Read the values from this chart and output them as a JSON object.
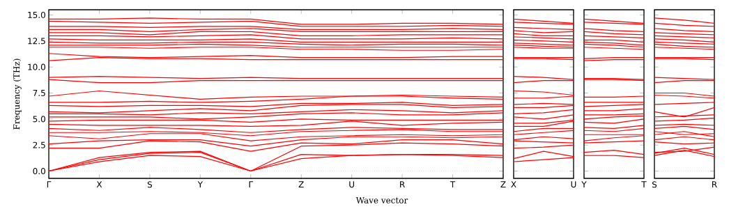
{
  "chart_data": [
    {
      "type": "line",
      "ylabel": "Frequency (THz)",
      "xlabel": "Wave vector",
      "color": "#ff0000",
      "marker": "none",
      "line_style": "solid",
      "categories": [
        "Γ",
        "X",
        "S",
        "Y",
        "Γ",
        "Z",
        "U",
        "R",
        "T",
        "Z"
      ],
      "ylim": [
        -0.7,
        15.5
      ],
      "yticks": [
        {
          "value": 0,
          "label": "0.0"
        },
        {
          "value": 2.5,
          "label": "2.5"
        },
        {
          "value": 5,
          "label": "5.0"
        },
        {
          "value": 7.5,
          "label": "7.5"
        },
        {
          "value": 10,
          "label": "10.0"
        },
        {
          "value": 12.5,
          "label": "12.5"
        },
        {
          "value": 15,
          "label": "15.0"
        }
      ],
      "ref_lines": [
        {
          "axis": "y",
          "value": 0,
          "color": "#6666ff",
          "line_style": "dotted"
        }
      ],
      "series": [
        {
          "values": [
            0,
            0.9,
            1.5,
            1.4,
            0,
            1.2,
            1.5,
            1.6,
            1.5,
            1.3
          ]
        },
        {
          "values": [
            0,
            1.1,
            1.7,
            1.8,
            0,
            1.6,
            1.5,
            1.6,
            1.6,
            1.5
          ]
        },
        {
          "values": [
            0,
            1.3,
            1.8,
            1.9,
            0,
            2.4,
            2.5,
            2.7,
            2.6,
            2.4
          ]
        },
        {
          "values": [
            2.2,
            2.2,
            2.9,
            2.8,
            1.9,
            2.7,
            2.6,
            3.0,
            3.0,
            2.6
          ]
        },
        {
          "values": [
            2.6,
            2.9,
            3.0,
            3.0,
            2.4,
            3.0,
            3.3,
            3.3,
            3.2,
            3.3
          ]
        },
        {
          "values": [
            3.4,
            3.1,
            3.6,
            3.6,
            2.9,
            3.3,
            3.4,
            3.5,
            3.4,
            3.5
          ]
        },
        {
          "values": [
            3.7,
            3.7,
            3.8,
            3.7,
            3.4,
            3.8,
            3.9,
            4.0,
            3.8,
            3.8
          ]
        },
        {
          "values": [
            4.1,
            3.9,
            4.2,
            4.0,
            3.7,
            4.0,
            4.2,
            4.1,
            4.0,
            4.0
          ]
        },
        {
          "values": [
            4.5,
            4.4,
            4.4,
            4.4,
            4.3,
            4.4,
            4.8,
            4.4,
            4.6,
            4.7
          ]
        },
        {
          "values": [
            4.8,
            4.9,
            4.9,
            4.9,
            4.7,
            5.0,
            4.9,
            4.9,
            4.9,
            4.9
          ]
        },
        {
          "values": [
            5.2,
            5.2,
            5.2,
            5.0,
            5.2,
            5.5,
            5.6,
            5.4,
            5.4,
            5.6
          ]
        },
        {
          "values": [
            5.5,
            5.5,
            5.4,
            5.6,
            5.5,
            5.7,
            5.9,
            5.8,
            5.6,
            5.8
          ]
        },
        {
          "values": [
            5.7,
            5.6,
            5.8,
            6.0,
            5.8,
            6.3,
            6.4,
            6.4,
            6.1,
            6.2
          ]
        },
        {
          "values": [
            6.3,
            6.2,
            6.3,
            6.3,
            6.2,
            6.5,
            6.5,
            6.6,
            6.3,
            6.4
          ]
        },
        {
          "values": [
            6.6,
            6.6,
            6.7,
            6.6,
            6.7,
            6.9,
            7.2,
            7.2,
            7.0,
            6.9
          ]
        },
        {
          "values": [
            7.2,
            7.7,
            7.3,
            6.9,
            7.1,
            7.2,
            7.2,
            7.3,
            7.2,
            7.1
          ]
        },
        {
          "values": [
            8.8,
            8.5,
            8.5,
            8.7,
            8.7,
            8.7,
            8.7,
            8.7,
            8.7,
            8.7
          ]
        },
        {
          "values": [
            9.0,
            9.1,
            9.0,
            8.9,
            9.0,
            8.9,
            8.9,
            8.9,
            8.9,
            8.9
          ]
        },
        {
          "values": [
            10.6,
            10.9,
            10.8,
            10.8,
            10.7,
            10.7,
            10.7,
            10.7,
            10.7,
            10.7
          ]
        },
        {
          "values": [
            11.3,
            11.0,
            10.9,
            11.0,
            11.1,
            10.9,
            10.9,
            10.9,
            11.0,
            11.0
          ]
        },
        {
          "values": [
            11.9,
            11.9,
            11.8,
            11.9,
            11.9,
            11.7,
            11.7,
            11.6,
            11.6,
            11.7
          ]
        },
        {
          "values": [
            12.1,
            12.1,
            12.1,
            12.2,
            12.1,
            11.9,
            11.9,
            11.9,
            11.9,
            11.9
          ]
        },
        {
          "values": [
            12.4,
            12.3,
            12.3,
            12.4,
            12.4,
            12.2,
            12.1,
            12.2,
            12.2,
            12.1
          ]
        },
        {
          "values": [
            12.7,
            12.6,
            12.6,
            12.6,
            12.7,
            12.4,
            12.4,
            12.4,
            12.4,
            12.4
          ]
        },
        {
          "values": [
            13.0,
            13.0,
            12.9,
            13.0,
            13.1,
            12.7,
            12.7,
            12.7,
            12.8,
            12.7
          ]
        },
        {
          "values": [
            13.3,
            13.3,
            13.1,
            13.4,
            13.4,
            13.0,
            13.0,
            13.1,
            13.1,
            13.1
          ]
        },
        {
          "values": [
            13.6,
            13.6,
            13.4,
            13.6,
            13.7,
            13.4,
            13.4,
            13.4,
            13.4,
            13.4
          ]
        },
        {
          "values": [
            13.9,
            13.9,
            13.8,
            13.9,
            13.9,
            13.6,
            13.6,
            13.6,
            13.7,
            13.6
          ]
        },
        {
          "values": [
            14.4,
            14.3,
            14.2,
            14.3,
            14.4,
            13.9,
            13.9,
            13.9,
            14.0,
            13.9
          ]
        },
        {
          "values": [
            14.6,
            14.6,
            14.7,
            14.6,
            14.6,
            14.1,
            14.1,
            14.2,
            14.2,
            14.1
          ]
        }
      ]
    },
    {
      "type": "line",
      "color": "#ff0000",
      "marker": "none",
      "line_style": "solid",
      "tick_labels": "x",
      "categories": [
        "X",
        null,
        "U"
      ],
      "ylim": [
        -0.7,
        15.5
      ],
      "yticks": [
        {
          "value": 0,
          "label": null
        },
        {
          "value": 2.5,
          "label": null
        },
        {
          "value": 5,
          "label": null
        },
        {
          "value": 7.5,
          "label": null
        },
        {
          "value": 10,
          "label": null
        },
        {
          "value": 12.5,
          "label": null
        },
        {
          "value": 15,
          "label": null
        }
      ],
      "ref_lines": [
        {
          "axis": "y",
          "value": 0,
          "color": "#6666ff",
          "line_style": "dotted"
        }
      ],
      "series": [
        {
          "values": [
            0.9,
            1.1,
            1.3
          ]
        },
        {
          "values": [
            1.2,
            1.9,
            1.4
          ]
        },
        {
          "values": [
            2.2,
            2.3,
            2.5
          ]
        },
        {
          "values": [
            2.9,
            2.8,
            2.7
          ]
        },
        {
          "values": [
            3.0,
            3.3,
            3.1
          ]
        },
        {
          "values": [
            3.5,
            3.7,
            3.9
          ]
        },
        {
          "values": [
            3.8,
            4.1,
            4.1
          ]
        },
        {
          "values": [
            4.3,
            4.3,
            4.8
          ]
        },
        {
          "values": [
            4.6,
            4.6,
            4.9
          ]
        },
        {
          "values": [
            5.2,
            5.0,
            5.4
          ]
        },
        {
          "values": [
            5.5,
            5.6,
            5.9
          ]
        },
        {
          "values": [
            6.1,
            6.1,
            6.3
          ]
        },
        {
          "values": [
            6.4,
            6.5,
            6.4
          ]
        },
        {
          "values": [
            7.0,
            7.0,
            7.2
          ]
        },
        {
          "values": [
            7.7,
            7.6,
            7.3
          ]
        },
        {
          "values": [
            8.5,
            8.7,
            8.7
          ]
        },
        {
          "values": [
            9.1,
            9.0,
            8.8
          ]
        },
        {
          "values": [
            10.8,
            10.8,
            10.7
          ]
        },
        {
          "values": [
            10.9,
            10.9,
            10.9
          ]
        },
        {
          "values": [
            11.9,
            11.8,
            11.8
          ]
        },
        {
          "values": [
            12.1,
            12.0,
            11.9
          ]
        },
        {
          "values": [
            12.3,
            12.2,
            12.1
          ]
        },
        {
          "values": [
            12.6,
            12.5,
            12.4
          ]
        },
        {
          "values": [
            12.9,
            12.8,
            12.7
          ]
        },
        {
          "values": [
            13.2,
            13.0,
            13.0
          ]
        },
        {
          "values": [
            13.5,
            13.3,
            13.4
          ]
        },
        {
          "values": [
            13.8,
            13.7,
            13.6
          ]
        },
        {
          "values": [
            14.3,
            14.2,
            14.1
          ]
        },
        {
          "values": [
            14.6,
            14.4,
            14.2
          ]
        }
      ]
    },
    {
      "type": "line",
      "color": "#ff0000",
      "marker": "none",
      "line_style": "solid",
      "tick_labels": "x",
      "categories": [
        "Y",
        null,
        "T"
      ],
      "ylim": [
        -0.7,
        15.5
      ],
      "yticks": [
        {
          "value": 0,
          "label": null
        },
        {
          "value": 2.5,
          "label": null
        },
        {
          "value": 5,
          "label": null
        },
        {
          "value": 7.5,
          "label": null
        },
        {
          "value": 10,
          "label": null
        },
        {
          "value": 12.5,
          "label": null
        },
        {
          "value": 15,
          "label": null
        }
      ],
      "ref_lines": [
        {
          "axis": "y",
          "value": 0,
          "color": "#6666ff",
          "line_style": "dotted"
        }
      ],
      "series": [
        {
          "values": [
            1.5,
            1.5,
            1.3
          ]
        },
        {
          "values": [
            1.8,
            2.0,
            1.6
          ]
        },
        {
          "values": [
            2.7,
            2.8,
            2.9
          ]
        },
        {
          "values": [
            2.9,
            3.2,
            3.4
          ]
        },
        {
          "values": [
            3.5,
            3.5,
            3.5
          ]
        },
        {
          "values": [
            3.9,
            3.8,
            4.1
          ]
        },
        {
          "values": [
            4.2,
            4.1,
            4.4
          ]
        },
        {
          "values": [
            4.7,
            4.6,
            5.0
          ]
        },
        {
          "values": [
            5.0,
            5.2,
            5.3
          ]
        },
        {
          "values": [
            5.4,
            5.4,
            5.5
          ]
        },
        {
          "values": [
            5.8,
            5.8,
            6.0
          ]
        },
        {
          "values": [
            6.2,
            6.3,
            6.4
          ]
        },
        {
          "values": [
            6.6,
            6.6,
            6.6
          ]
        },
        {
          "values": [
            7.1,
            7.1,
            7.2
          ]
        },
        {
          "values": [
            8.8,
            8.8,
            8.7
          ]
        },
        {
          "values": [
            8.9,
            8.9,
            8.8
          ]
        },
        {
          "values": [
            10.6,
            10.7,
            10.7
          ]
        },
        {
          "values": [
            10.8,
            10.9,
            10.9
          ]
        },
        {
          "values": [
            11.9,
            11.8,
            11.7
          ]
        },
        {
          "values": [
            12.2,
            12.1,
            11.9
          ]
        },
        {
          "values": [
            12.4,
            12.3,
            12.1
          ]
        },
        {
          "values": [
            12.6,
            12.6,
            12.4
          ]
        },
        {
          "values": [
            13.0,
            12.9,
            12.8
          ]
        },
        {
          "values": [
            13.4,
            13.2,
            13.1
          ]
        },
        {
          "values": [
            13.7,
            13.5,
            13.4
          ]
        },
        {
          "values": [
            14.3,
            14.2,
            14.1
          ]
        },
        {
          "values": [
            14.6,
            14.4,
            14.2
          ]
        }
      ]
    },
    {
      "type": "line",
      "color": "#ff0000",
      "marker": "none",
      "line_style": "solid",
      "tick_labels": "x",
      "categories": [
        "S",
        null,
        "R"
      ],
      "ylim": [
        -0.7,
        15.5
      ],
      "yticks": [
        {
          "value": 0,
          "label": null
        },
        {
          "value": 2.5,
          "label": null
        },
        {
          "value": 5,
          "label": null
        },
        {
          "value": 7.5,
          "label": null
        },
        {
          "value": 10,
          "label": null
        },
        {
          "value": 12.5,
          "label": null
        },
        {
          "value": 15,
          "label": null
        }
      ],
      "ref_lines": [
        {
          "axis": "y",
          "value": 0,
          "color": "#6666ff",
          "line_style": "dotted"
        }
      ],
      "series": [
        {
          "values": [
            1.5,
            2.0,
            1.4
          ]
        },
        {
          "values": [
            1.7,
            2.2,
            1.6
          ]
        },
        {
          "values": [
            1.8,
            1.9,
            2.3
          ]
        },
        {
          "values": [
            2.8,
            2.6,
            2.7
          ]
        },
        {
          "values": [
            3.0,
            3.3,
            3.0
          ]
        },
        {
          "values": [
            3.5,
            3.8,
            3.3
          ]
        },
        {
          "values": [
            3.8,
            3.5,
            3.6
          ]
        },
        {
          "values": [
            4.1,
            4.3,
            4.0
          ]
        },
        {
          "values": [
            4.4,
            4.5,
            4.4
          ]
        },
        {
          "values": [
            4.8,
            4.9,
            5.1
          ]
        },
        {
          "values": [
            5.2,
            5.3,
            5.4
          ]
        },
        {
          "values": [
            5.7,
            5.2,
            6.1
          ]
        },
        {
          "values": [
            6.4,
            6.5,
            6.6
          ]
        },
        {
          "values": [
            7.3,
            7.2,
            7.0
          ]
        },
        {
          "values": [
            7.5,
            7.5,
            7.2
          ]
        },
        {
          "values": [
            8.5,
            8.7,
            8.7
          ]
        },
        {
          "values": [
            9.0,
            8.9,
            8.8
          ]
        },
        {
          "values": [
            10.8,
            10.8,
            10.7
          ]
        },
        {
          "values": [
            10.9,
            10.9,
            10.9
          ]
        },
        {
          "values": [
            11.9,
            11.8,
            11.7
          ]
        },
        {
          "values": [
            12.2,
            12.0,
            11.9
          ]
        },
        {
          "values": [
            12.4,
            12.3,
            12.2
          ]
        },
        {
          "values": [
            12.7,
            12.6,
            12.4
          ]
        },
        {
          "values": [
            13.0,
            12.9,
            12.8
          ]
        },
        {
          "values": [
            13.3,
            13.2,
            13.1
          ]
        },
        {
          "values": [
            13.7,
            13.5,
            13.4
          ]
        },
        {
          "values": [
            14.2,
            14.0,
            13.9
          ]
        },
        {
          "values": [
            14.7,
            14.5,
            14.2
          ]
        }
      ]
    }
  ]
}
